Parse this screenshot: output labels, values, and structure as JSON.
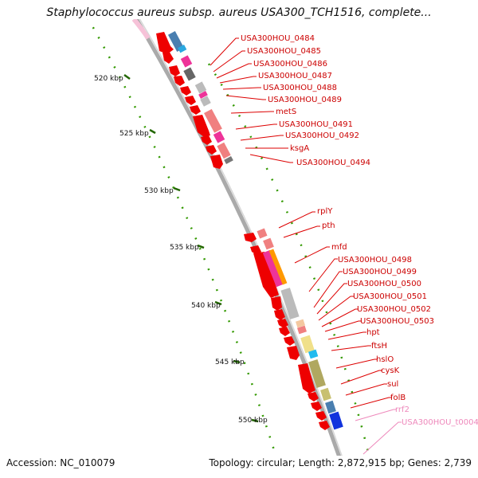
{
  "title": "Staphylococcus aureus subsp. aureus USA300_TCH1516, complete...",
  "accession": "Accession: NC_010079",
  "info": "Topology: circular; Length: 2,872,915 bp; Genes: 2,739",
  "ruler": {
    "ticks": [
      {
        "label": "520 kbp"
      },
      {
        "label": "525 kbp"
      },
      {
        "label": "530 kbp"
      },
      {
        "label": "535 kbp"
      },
      {
        "label": "540 kbp"
      },
      {
        "label": "545 kbp"
      },
      {
        "label": "550 kbp"
      }
    ]
  },
  "genes": [
    {
      "name": "USA300HOU_0484",
      "color": "#cc0000"
    },
    {
      "name": "USA300HOU_0485",
      "color": "#cc0000"
    },
    {
      "name": "USA300HOU_0486",
      "color": "#cc0000"
    },
    {
      "name": "USA300HOU_0487",
      "color": "#cc0000"
    },
    {
      "name": "USA300HOU_0488",
      "color": "#cc0000"
    },
    {
      "name": "USA300HOU_0489",
      "color": "#cc0000"
    },
    {
      "name": "metS",
      "color": "#cc0000"
    },
    {
      "name": "USA300HOU_0491",
      "color": "#cc0000"
    },
    {
      "name": "USA300HOU_0492",
      "color": "#cc0000"
    },
    {
      "name": "ksgA",
      "color": "#cc0000"
    },
    {
      "name": "USA300HOU_0494",
      "color": "#cc0000"
    },
    {
      "name": "rplY",
      "color": "#cc0000"
    },
    {
      "name": "pth",
      "color": "#cc0000"
    },
    {
      "name": "mfd",
      "color": "#cc0000"
    },
    {
      "name": "USA300HOU_0498",
      "color": "#cc0000"
    },
    {
      "name": "USA300HOU_0499",
      "color": "#cc0000"
    },
    {
      "name": "USA300HOU_0500",
      "color": "#cc0000"
    },
    {
      "name": "USA300HOU_0501",
      "color": "#cc0000"
    },
    {
      "name": "USA300HOU_0502",
      "color": "#cc0000"
    },
    {
      "name": "USA300HOU_0503",
      "color": "#cc0000"
    },
    {
      "name": "hpt",
      "color": "#cc0000"
    },
    {
      "name": "ftsH",
      "color": "#cc0000"
    },
    {
      "name": "hslO",
      "color": "#cc0000"
    },
    {
      "name": "cysK",
      "color": "#cc0000"
    },
    {
      "name": "sul",
      "color": "#cc0000"
    },
    {
      "name": "folB",
      "color": "#cc0000"
    },
    {
      "name": "rrf2",
      "color": "#ee88bb"
    },
    {
      "name": "USA300HOU_t0004",
      "color": "#ee88bb"
    }
  ],
  "colors": {
    "backbone": "#999999",
    "cds": "#ee0000",
    "ruler_dots": "#339900",
    "tick_marks": "#226600",
    "rna_track": "#ff99cc"
  }
}
